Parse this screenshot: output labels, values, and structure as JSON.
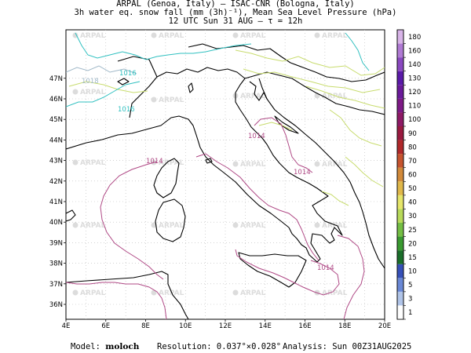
{
  "header": {
    "line1": "ARPAL (Genoa, Italy)  —  ISAC-CNR (Bologna, Italy)",
    "line2": "3h water eq. snow fall (mm (3h)⁻¹), Mean Sea Level Pressure (hPa)",
    "line3": "12 UTC Sun 31 AUG  —  τ = 12h"
  },
  "axes": {
    "lon_labels": [
      "4E",
      "6E",
      "8E",
      "10E",
      "12E",
      "14E",
      "16E",
      "18E",
      "20E"
    ],
    "lat_labels": [
      "36N",
      "37N",
      "38N",
      "39N",
      "40N",
      "41N",
      "42N",
      "43N",
      "44N",
      "45N",
      "46N",
      "47N"
    ]
  },
  "watermark": "ARPAL",
  "isobars": [
    {
      "label": "1018",
      "color": "#a0b8c8"
    },
    {
      "label": "1016",
      "color": "#30c0c0"
    },
    {
      "label": "1014",
      "color": "#b04a86"
    }
  ],
  "colorbar": {
    "values": [
      "1",
      "3",
      "5",
      "10",
      "15",
      "20",
      "25",
      "30",
      "40",
      "50",
      "60",
      "70",
      "80",
      "90",
      "100",
      "110",
      "120",
      "130",
      "140",
      "160",
      "180"
    ],
    "colors": [
      "#ffffff",
      "#b0c4e8",
      "#6a88d6",
      "#3650b8",
      "#1a6e2a",
      "#3a9a30",
      "#74be44",
      "#b8da5a",
      "#e6e66a",
      "#e0b84a",
      "#d28a3a",
      "#c6542e",
      "#b0282a",
      "#9a1a40",
      "#8e1a66",
      "#7e1a86",
      "#6a1a9a",
      "#5a1aa8",
      "#8a48c0",
      "#b07ad4",
      "#d8b4e8"
    ]
  },
  "footer": {
    "model_label": "Model:",
    "model_value": "moloch",
    "resolution_label": "Resolution:",
    "resolution_value": "0.037°×0.028°",
    "analysis_label": "Analysis:",
    "analysis_value": "Sun 00Z31AUG2025"
  }
}
